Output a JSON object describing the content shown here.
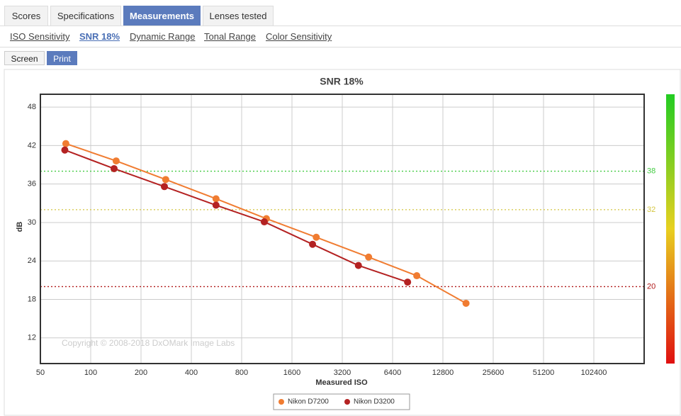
{
  "tabs": [
    "Scores",
    "Specifications",
    "Measurements",
    "Lenses tested"
  ],
  "subtabs": [
    "ISO Sensitivity",
    "SNR 18%",
    "Dynamic Range",
    "Tonal Range",
    "Color Sensitivity"
  ],
  "buttons": [
    "Screen",
    "Print"
  ],
  "chart_data": {
    "type": "line",
    "title": "SNR 18%",
    "x_label": "Measured ISO",
    "y_label": "dB",
    "watermark": "Copyright © 2008-2018 DxOMark Image Labs",
    "xscale": "log",
    "xlim": [
      50,
      204800
    ],
    "xticks": [
      50,
      100,
      200,
      400,
      800,
      1600,
      3200,
      6400,
      12800,
      25600,
      51200,
      102400
    ],
    "ylim": [
      8,
      50
    ],
    "yticks": [
      12,
      18,
      24,
      30,
      36,
      42,
      48
    ],
    "grid": true,
    "reference_lines": [
      {
        "value": 38,
        "color": "#44cc44"
      },
      {
        "value": 32,
        "color": "#d4c640"
      },
      {
        "value": 20,
        "color": "#b01818"
      }
    ],
    "series": [
      {
        "name": "Nikon D7200",
        "color": "#f07c31",
        "x": [
          71,
          142,
          281,
          562,
          1125,
          2236,
          4600,
          8930,
          17600
        ],
        "values": [
          42.3,
          39.6,
          36.7,
          33.7,
          30.6,
          27.7,
          24.6,
          21.7,
          17.4
        ]
      },
      {
        "name": "Nikon D3200",
        "color": "#b42222",
        "x": [
          70,
          138,
          276,
          562,
          1093,
          2125,
          3996,
          7870
        ],
        "values": [
          41.3,
          38.4,
          35.6,
          32.7,
          30.1,
          26.6,
          23.3,
          20.7
        ]
      }
    ]
  }
}
